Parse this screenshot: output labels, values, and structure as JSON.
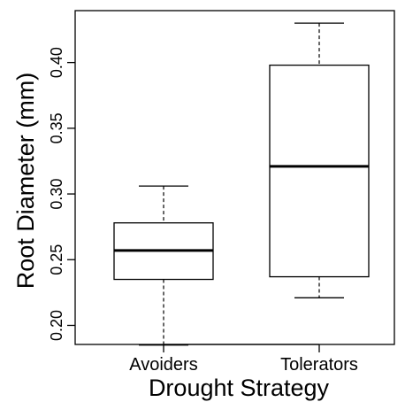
{
  "chart_data": {
    "type": "boxplot",
    "title": "",
    "xlabel": "Drought Strategy",
    "ylabel": "Root Diameter (mm)",
    "ylim": [
      0.1855,
      0.4395
    ],
    "yticks": [
      0.2,
      0.25,
      0.3,
      0.35,
      0.4
    ],
    "ytick_labels": [
      "0.20",
      "0.25",
      "0.30",
      "0.35",
      "0.40"
    ],
    "categories": [
      "Avoiders",
      "Tolerators"
    ],
    "boxes": [
      {
        "category": "Avoiders",
        "whisker_low": 0.185,
        "q1": 0.235,
        "median": 0.257,
        "q3": 0.278,
        "whisker_high": 0.306
      },
      {
        "category": "Tolerators",
        "whisker_low": 0.221,
        "q1": 0.237,
        "median": 0.321,
        "q3": 0.398,
        "whisker_high": 0.43
      }
    ],
    "grid": false,
    "legend": "none"
  }
}
